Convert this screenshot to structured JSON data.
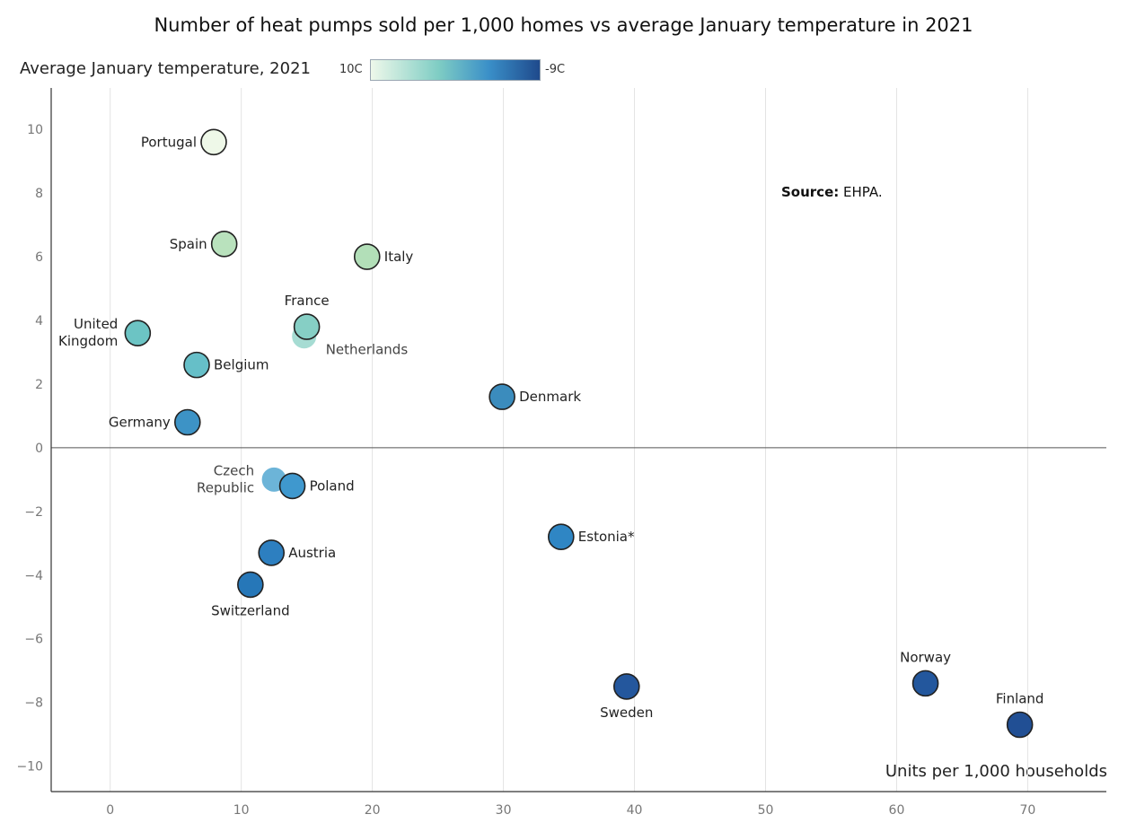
{
  "chart_data": {
    "type": "scatter",
    "title": "Number of heat pumps sold per 1,000 homes vs average January temperature in 2021",
    "ylabel": "Average January temperature, 2021",
    "xlabel": "Units per 1,000 households",
    "color_scale": {
      "min_label": "10C",
      "max_label": "-9C",
      "min_color": "#eef8ea",
      "max_color": "#1f4a8c"
    },
    "source_label": "Source:",
    "source_text": "EHPA.",
    "xlim": [
      -4.5,
      76
    ],
    "ylim": [
      -10.8,
      11.3
    ],
    "xticks": [
      "0",
      "10",
      "20",
      "30",
      "40",
      "50",
      "60",
      "70"
    ],
    "yticks": [
      "10",
      "8",
      "6",
      "4",
      "2",
      "0",
      "−2",
      "−4",
      "−6",
      "−8",
      "−10"
    ],
    "xtick_values": [
      0,
      10,
      20,
      30,
      40,
      50,
      60,
      70
    ],
    "ytick_values": [
      10,
      8,
      6,
      4,
      2,
      0,
      -2,
      -4,
      -6,
      -8,
      -10
    ],
    "grid": "vertical",
    "points": [
      {
        "label": "Portugal",
        "x": 7.9,
        "y": 9.6,
        "color": "#eef8e8",
        "label_pos": "left"
      },
      {
        "label": "Spain",
        "x": 8.7,
        "y": 6.4,
        "color": "#b9e2bd",
        "label_pos": "left"
      },
      {
        "label": "Italy",
        "x": 19.6,
        "y": 6.0,
        "color": "#b2dfb8",
        "label_pos": "right"
      },
      {
        "label": "France",
        "x": 15.0,
        "y": 3.8,
        "color": "#86cfc5",
        "label_pos": "above"
      },
      {
        "label": "Netherlands",
        "x": 14.8,
        "y": 3.5,
        "color": "#a6dcd3",
        "label_pos": "right-below",
        "muted": true
      },
      {
        "label": "United Kingdom",
        "x": 2.1,
        "y": 3.6,
        "color": "#6cc4c4",
        "label_pos": "left-two-line"
      },
      {
        "label": "Belgium",
        "x": 6.6,
        "y": 2.6,
        "color": "#66bfc8",
        "label_pos": "right"
      },
      {
        "label": "Denmark",
        "x": 29.9,
        "y": 1.6,
        "color": "#3b8cbd",
        "label_pos": "right"
      },
      {
        "label": "Germany",
        "x": 5.9,
        "y": 0.8,
        "color": "#3d93c6",
        "label_pos": "left"
      },
      {
        "label": "Czech Republic",
        "x": 12.5,
        "y": -1.0,
        "color": "#6cb4d8",
        "label_pos": "left-two-line",
        "muted": true
      },
      {
        "label": "Poland",
        "x": 13.9,
        "y": -1.2,
        "color": "#3f98ce",
        "label_pos": "right"
      },
      {
        "label": "Estonia*",
        "x": 34.4,
        "y": -2.8,
        "color": "#2f86c4",
        "label_pos": "right"
      },
      {
        "label": "Austria",
        "x": 12.3,
        "y": -3.3,
        "color": "#2d7fc0",
        "label_pos": "right"
      },
      {
        "label": "Switzerland",
        "x": 10.7,
        "y": -4.3,
        "color": "#2677b8",
        "label_pos": "below"
      },
      {
        "label": "Sweden",
        "x": 39.4,
        "y": -7.5,
        "color": "#24579d",
        "label_pos": "below"
      },
      {
        "label": "Norway",
        "x": 62.2,
        "y": -7.4,
        "color": "#23579d",
        "label_pos": "above"
      },
      {
        "label": "Finland",
        "x": 69.4,
        "y": -8.7,
        "color": "#214f94",
        "label_pos": "above"
      }
    ]
  }
}
